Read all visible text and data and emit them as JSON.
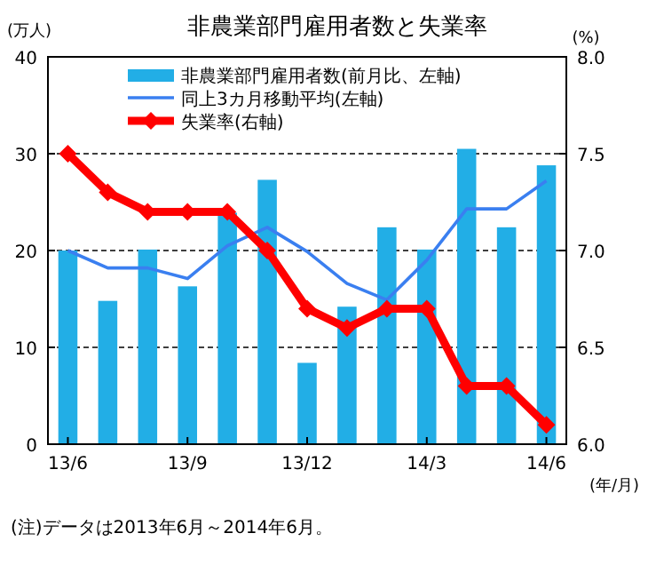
{
  "chart_data": {
    "type": "bar",
    "title": "非農業部門雇用者数と失業率",
    "ylabel": "(万人)",
    "y2label": "(%)",
    "xlabel": "(年/月)",
    "categories": [
      "13/6",
      null,
      null,
      "13/9",
      null,
      null,
      "13/12",
      null,
      null,
      "14/3",
      null,
      null,
      "14/6"
    ],
    "series": [
      {
        "name": "非農業部門雇用者数(前月比、左軸)",
        "color": "#22aee6",
        "values": [
          20.0,
          14.8,
          20.1,
          16.3,
          23.9,
          27.3,
          8.4,
          14.2,
          22.4,
          20.1,
          30.5,
          22.4,
          28.8
        ]
      },
      {
        "name": "同上3カ月移動平均(左軸)",
        "type": "line",
        "color": "#3a7ff0",
        "marker": "none",
        "values": [
          20.0,
          18.2,
          18.2,
          17.1,
          20.5,
          22.4,
          19.9,
          16.6,
          14.9,
          19.0,
          24.3,
          24.3,
          27.2
        ]
      },
      {
        "name": "失業率(右軸)",
        "type": "line",
        "color": "#ff0000",
        "marker": "diamond",
        "axis": "y2",
        "values": [
          7.5,
          7.3,
          7.2,
          7.2,
          7.2,
          7.0,
          6.7,
          6.6,
          6.7,
          6.7,
          6.3,
          6.3,
          6.1
        ]
      }
    ],
    "ylim": [
      0,
      40
    ],
    "yticks": [
      0,
      10,
      20,
      30,
      40
    ],
    "y2lim": [
      6,
      8
    ],
    "y2ticks": [
      {
        "value": 6,
        "label": "6.0"
      },
      {
        "value": 6.5,
        "label": "6.5"
      },
      {
        "value": 7,
        "label": "7.0"
      },
      {
        "value": 7.5,
        "label": "7.5"
      },
      {
        "value": 8,
        "label": "8.0"
      }
    ],
    "grid": "y",
    "legend": "top",
    "annotations": [
      "(注)データは2013年6月～2014年6月。"
    ]
  }
}
